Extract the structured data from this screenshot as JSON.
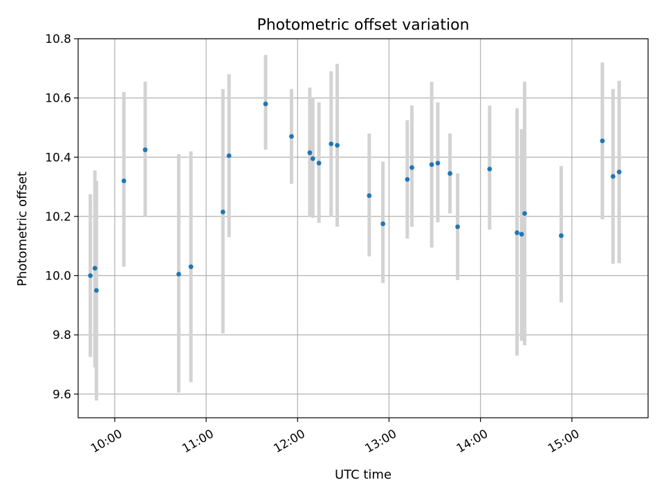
{
  "chart_data": {
    "type": "scatter",
    "title": "Photometric offset variation",
    "xlabel": "UTC time",
    "ylabel": "Photometric offset",
    "x_axis": "time",
    "xlim": [
      "09:36",
      "15:50"
    ],
    "ylim": [
      9.52,
      10.8
    ],
    "x_ticks": [
      "10:00",
      "11:00",
      "12:00",
      "13:00",
      "14:00",
      "15:00"
    ],
    "y_ticks": [
      "9.6",
      "9.8",
      "10.0",
      "10.2",
      "10.4",
      "10.6",
      "10.8"
    ],
    "grid": true,
    "marker_color": "#1f77b4",
    "errorbar_color": "#d3d3d3",
    "points": [
      {
        "x": "09:44",
        "y": 10.0,
        "ylow": 9.725,
        "yhigh": 10.275
      },
      {
        "x": "09:47",
        "y": 10.025,
        "ylow": 9.69,
        "yhigh": 10.355
      },
      {
        "x": "09:48",
        "y": 9.95,
        "ylow": 9.578,
        "yhigh": 10.32
      },
      {
        "x": "10:06",
        "y": 10.32,
        "ylow": 10.03,
        "yhigh": 10.62
      },
      {
        "x": "10:20",
        "y": 10.425,
        "ylow": 10.2,
        "yhigh": 10.655
      },
      {
        "x": "10:42",
        "y": 10.005,
        "ylow": 9.605,
        "yhigh": 10.41
      },
      {
        "x": "10:50",
        "y": 10.03,
        "ylow": 9.64,
        "yhigh": 10.42
      },
      {
        "x": "11:11",
        "y": 10.215,
        "ylow": 9.805,
        "yhigh": 10.63
      },
      {
        "x": "11:15",
        "y": 10.405,
        "ylow": 10.13,
        "yhigh": 10.68
      },
      {
        "x": "11:39",
        "y": 10.58,
        "ylow": 10.425,
        "yhigh": 10.745
      },
      {
        "x": "11:56",
        "y": 10.47,
        "ylow": 10.31,
        "yhigh": 10.63
      },
      {
        "x": "12:08",
        "y": 10.415,
        "ylow": 10.2,
        "yhigh": 10.635
      },
      {
        "x": "12:10",
        "y": 10.395,
        "ylow": 10.195,
        "yhigh": 10.6
      },
      {
        "x": "12:14",
        "y": 10.38,
        "ylow": 10.178,
        "yhigh": 10.585
      },
      {
        "x": "12:22",
        "y": 10.445,
        "ylow": 10.198,
        "yhigh": 10.69
      },
      {
        "x": "12:26",
        "y": 10.44,
        "ylow": 10.165,
        "yhigh": 10.715
      },
      {
        "x": "12:47",
        "y": 10.27,
        "ylow": 10.065,
        "yhigh": 10.48
      },
      {
        "x": "12:56",
        "y": 10.175,
        "ylow": 9.975,
        "yhigh": 10.385
      },
      {
        "x": "13:12",
        "y": 10.325,
        "ylow": 10.125,
        "yhigh": 10.525
      },
      {
        "x": "13:15",
        "y": 10.365,
        "ylow": 10.165,
        "yhigh": 10.575
      },
      {
        "x": "13:28",
        "y": 10.375,
        "ylow": 10.095,
        "yhigh": 10.655
      },
      {
        "x": "13:32",
        "y": 10.38,
        "ylow": 10.18,
        "yhigh": 10.585
      },
      {
        "x": "13:40",
        "y": 10.345,
        "ylow": 10.21,
        "yhigh": 10.48
      },
      {
        "x": "13:45",
        "y": 10.165,
        "ylow": 9.985,
        "yhigh": 10.345
      },
      {
        "x": "14:06",
        "y": 10.36,
        "ylow": 10.155,
        "yhigh": 10.575
      },
      {
        "x": "14:24",
        "y": 10.145,
        "ylow": 9.73,
        "yhigh": 10.565
      },
      {
        "x": "14:27",
        "y": 10.14,
        "ylow": 9.78,
        "yhigh": 10.495
      },
      {
        "x": "14:29",
        "y": 10.21,
        "ylow": 9.765,
        "yhigh": 10.655
      },
      {
        "x": "14:53",
        "y": 10.135,
        "ylow": 9.91,
        "yhigh": 10.37
      },
      {
        "x": "15:20",
        "y": 10.455,
        "ylow": 10.19,
        "yhigh": 10.72
      },
      {
        "x": "15:27",
        "y": 10.335,
        "ylow": 10.04,
        "yhigh": 10.63
      },
      {
        "x": "15:31",
        "y": 10.35,
        "ylow": 10.042,
        "yhigh": 10.658
      }
    ]
  }
}
